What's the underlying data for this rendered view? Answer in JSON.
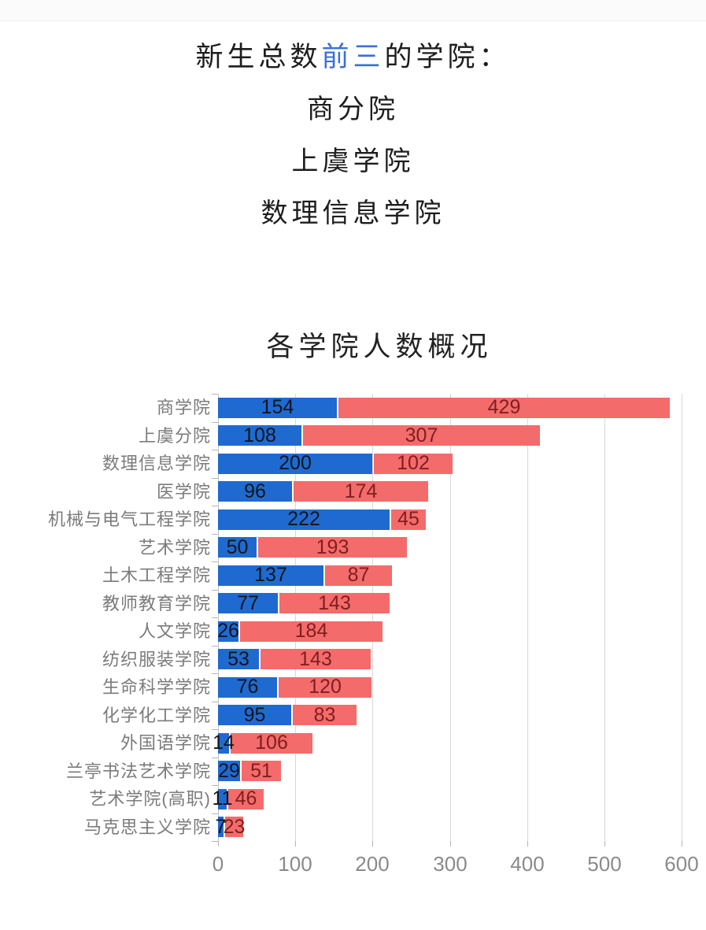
{
  "header": {
    "line1_prefix": "新生总数",
    "line1_highlight": "前三",
    "line1_suffix": "的学院：",
    "highlight_color": "#3a6fd8",
    "top3": [
      "商分院",
      "上虞学院",
      "数理信息学院"
    ]
  },
  "chart": {
    "title": "各学院人数概况"
  },
  "chart_data": {
    "type": "bar",
    "orientation": "horizontal",
    "stacked": true,
    "title": "各学院人数概况",
    "xlabel": "",
    "ylabel": "",
    "xlim": [
      0,
      600
    ],
    "x_ticks": [
      0,
      100,
      200,
      300,
      400,
      500,
      600
    ],
    "grid": true,
    "legend": "none",
    "categories": [
      "商学院",
      "上虞分院",
      "数理信息学院",
      "医学院",
      "机械与电气工程学院",
      "艺术学院",
      "土木工程学院",
      "教师教育学院",
      "人文学院",
      "纺织服装学院",
      "生命科学学院",
      "化学化工学院",
      "外国语学院",
      "兰亭书法艺术学院",
      "艺术学院(高职)",
      "马克思主义学院"
    ],
    "series": [
      {
        "name": "series-blue",
        "color": "#1f6ad0",
        "label_color": "#11151c",
        "values": [
          154,
          108,
          200,
          96,
          222,
          50,
          137,
          77,
          26,
          53,
          76,
          95,
          14,
          29,
          11,
          7
        ]
      },
      {
        "name": "series-red",
        "color": "#f46b6b",
        "label_color": "#7e1f1f",
        "values": [
          429,
          307,
          102,
          174,
          45,
          193,
          87,
          143,
          184,
          143,
          120,
          83,
          106,
          51,
          46,
          23
        ]
      }
    ]
  }
}
